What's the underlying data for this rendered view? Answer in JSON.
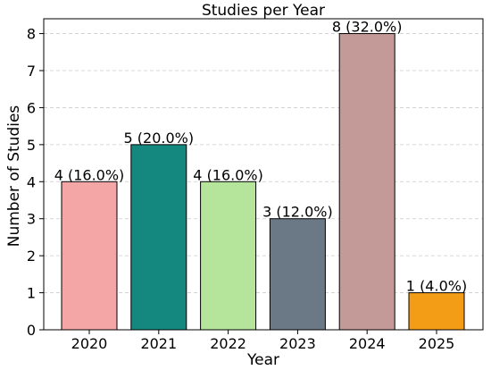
{
  "chart_data": {
    "type": "bar",
    "title": "Studies per Year",
    "xlabel": "Year",
    "ylabel": "Number of Studies",
    "categories": [
      "2020",
      "2021",
      "2022",
      "2023",
      "2024",
      "2025"
    ],
    "values": [
      4,
      5,
      4,
      3,
      8,
      1
    ],
    "data_labels": [
      "4 (16.0%)",
      "5 (20.0%)",
      "4 (16.0%)",
      "3 (12.0%)",
      "8 (32.0%)",
      "1 (4.0%)"
    ],
    "colors": [
      "#f4a6a6",
      "#14877f",
      "#b5e49b",
      "#6b7885",
      "#c49a98",
      "#f39c16"
    ],
    "ylim": [
      0,
      8.4
    ],
    "yticks": [
      0,
      1,
      2,
      3,
      4,
      5,
      6,
      7,
      8
    ],
    "grid": "horizontal-dashed",
    "legend": "none"
  }
}
